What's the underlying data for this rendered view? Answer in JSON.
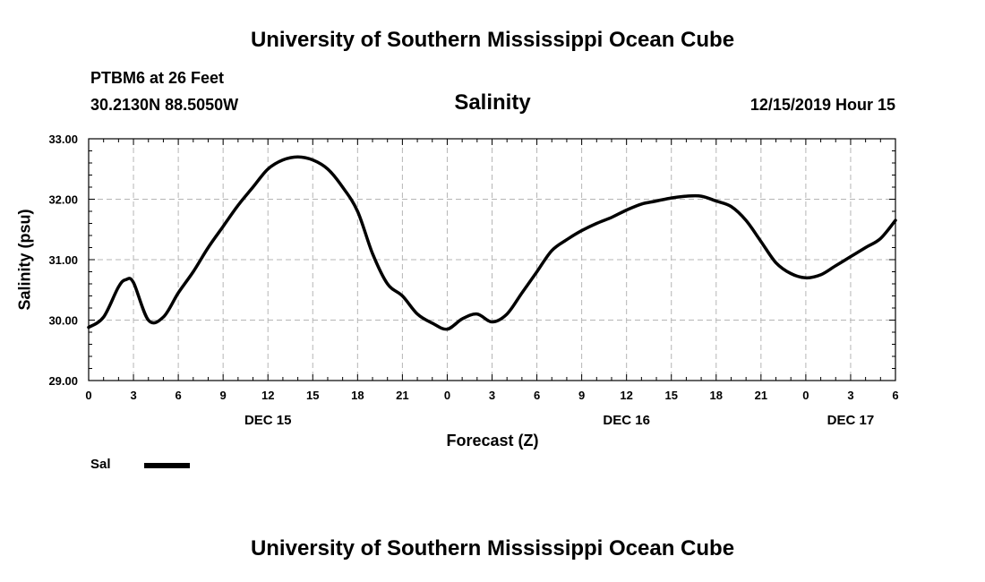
{
  "header_title": "University of Southern Mississippi Ocean Cube",
  "footer_title": "University of Southern Mississippi Ocean Cube",
  "station": "PTBM6 at 26 Feet",
  "coordinates": "30.2130N 88.5050W",
  "issued": "12/15/2019 Hour 15",
  "legend": {
    "label": "Sal"
  },
  "chart_data": {
    "type": "line",
    "title": "Salinity",
    "xlabel": "Forecast (Z)",
    "ylabel": "Salinity (psu)",
    "x_start": "2019-12-15 00Z",
    "x_end": "2019-12-17 06Z",
    "x_ticks": [
      "0",
      "3",
      "6",
      "9",
      "12",
      "15",
      "18",
      "21",
      "0",
      "3",
      "6",
      "9",
      "12",
      "15",
      "18",
      "21",
      "0",
      "3",
      "6"
    ],
    "day_labels": [
      {
        "label": "DEC 15",
        "at_hour": 12
      },
      {
        "label": "DEC 16",
        "at_hour": 36
      },
      {
        "label": "DEC 17",
        "at_hour": 51
      }
    ],
    "ylim": [
      29.0,
      33.0
    ],
    "y_ticks": [
      "29.00",
      "30.00",
      "31.00",
      "32.00",
      "33.00"
    ],
    "grid": true,
    "series": [
      {
        "name": "Sal",
        "x": [
          0,
          1,
          2,
          2.5,
          3,
          4,
          5,
          6,
          7,
          8,
          9,
          10,
          11,
          12,
          13,
          14,
          15,
          16,
          17,
          18,
          19,
          20,
          21,
          22,
          23,
          24,
          25,
          26,
          27,
          28,
          29,
          30,
          31,
          32,
          33,
          34,
          35,
          36,
          37,
          38,
          39,
          40,
          41,
          42,
          43,
          44,
          45,
          46,
          47,
          48,
          49,
          50,
          51,
          52,
          53,
          54
        ],
        "y": [
          29.88,
          30.05,
          30.55,
          30.67,
          30.62,
          30.0,
          30.05,
          30.45,
          30.8,
          31.2,
          31.55,
          31.9,
          32.2,
          32.5,
          32.65,
          32.7,
          32.65,
          32.5,
          32.2,
          31.8,
          31.1,
          30.6,
          30.4,
          30.1,
          29.95,
          29.85,
          30.02,
          30.1,
          29.97,
          30.1,
          30.45,
          30.8,
          31.15,
          31.33,
          31.48,
          31.6,
          31.7,
          31.82,
          31.92,
          31.97,
          32.02,
          32.05,
          32.05,
          31.97,
          31.88,
          31.65,
          31.3,
          30.95,
          30.77,
          30.7,
          30.75,
          30.9,
          31.05,
          31.2,
          31.35,
          31.65
        ]
      }
    ]
  }
}
